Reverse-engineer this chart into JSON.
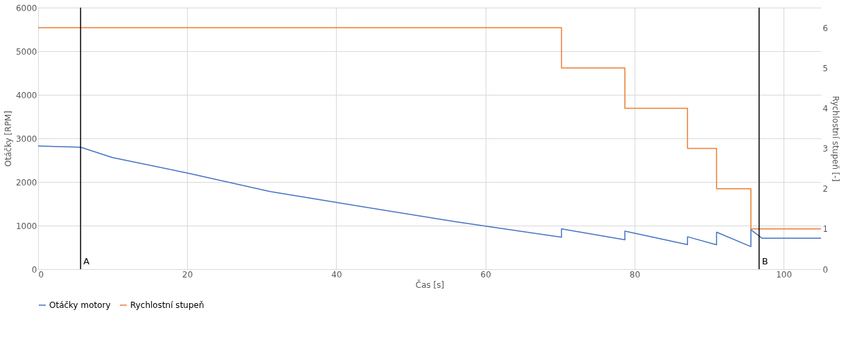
{
  "chart_data": {
    "type": "line",
    "xlabel": "Čas [s]",
    "ylabel": "Otáčky [RPM]",
    "y2label": "Rychlostní stupeň [-]",
    "xlim": [
      0,
      105
    ],
    "xticks": [
      0,
      20,
      40,
      60,
      80,
      100
    ],
    "ylim": [
      0,
      6000
    ],
    "yticks": [
      0,
      1000,
      2000,
      3000,
      4000,
      5000,
      6000
    ],
    "y2lim": [
      0,
      6.5
    ],
    "y2ticks": [
      0,
      1,
      2,
      3,
      4,
      5,
      6
    ],
    "grid": true,
    "legend": "bottom",
    "marker": "none",
    "line_style": "solid",
    "series": [
      {
        "name": "Otáčky motory",
        "color": "#4472c4",
        "x": [
          0,
          5.7,
          10,
          20,
          31.1,
          40,
          55.9,
          60,
          70.2,
          70.2,
          78.7,
          78.7,
          87.1,
          87.1,
          91.0,
          91.0,
          95.6,
          95.6,
          97.1,
          105
        ],
        "values": [
          2825,
          2798,
          2560,
          2206,
          1783,
          1530,
          1093,
          988,
          733,
          924,
          674,
          872,
          564,
          744,
          558,
          849,
          517,
          907,
          709,
          709
        ]
      },
      {
        "name": "Rychlostní stupeň",
        "color": "#ed7d31",
        "type": "step",
        "axis": "y2",
        "x": [
          0,
          70.2,
          78.7,
          87.1,
          91.0,
          95.6,
          105
        ],
        "values": [
          6,
          5,
          4,
          3,
          2,
          1,
          1
        ]
      }
    ],
    "ref_lines": [
      {
        "axis": "x",
        "value": 5.7,
        "label": "A",
        "color": "#000000"
      },
      {
        "axis": "x",
        "value": 96.7,
        "label": "B",
        "color": "#000000"
      }
    ]
  }
}
